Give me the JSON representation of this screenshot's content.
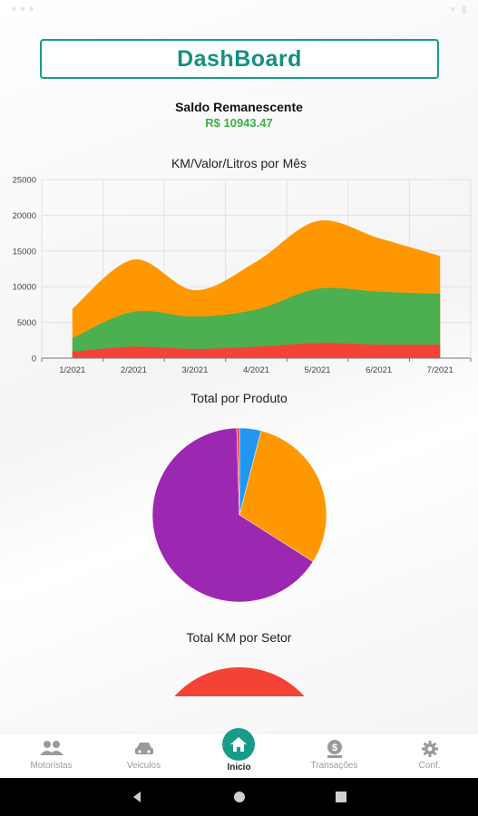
{
  "title": "DashBoard",
  "saldo": {
    "label": "Saldo Remanescente",
    "value": "R$ 10943.47"
  },
  "colors": {
    "accent": "#1a9b8a",
    "orange": "#ff9800",
    "green": "#4caf50",
    "red": "#f44336",
    "purple": "#9c27b0",
    "blue": "#2196f3",
    "saldo": "#3cb043"
  },
  "chart_data": [
    {
      "type": "area",
      "title": "KM/Valor/Litros por Mês",
      "categories": [
        "1/2021",
        "2/2021",
        "3/2021",
        "4/2021",
        "5/2021",
        "6/2021",
        "7/2021"
      ],
      "stacked": true,
      "ylim": [
        0,
        25000
      ],
      "yticks": [
        "0",
        "5000",
        "10000",
        "15000",
        "20000",
        "25000"
      ],
      "grid": true,
      "series": [
        {
          "color": "#f44336",
          "values": [
            900,
            1600,
            1300,
            1600,
            2100,
            1900,
            1900
          ]
        },
        {
          "color": "#4caf50",
          "values": [
            1900,
            4900,
            4500,
            5200,
            7600,
            7400,
            7100
          ]
        },
        {
          "color": "#ff9800",
          "values": [
            4100,
            7300,
            3700,
            6700,
            9500,
            7500,
            5300
          ]
        }
      ]
    },
    {
      "type": "pie",
      "title": "Total por Produto",
      "slices": [
        {
          "color": "#2196f3",
          "value": 4
        },
        {
          "color": "#ff9800",
          "value": 30
        },
        {
          "color": "#9c27b0",
          "value": 65.5
        },
        {
          "color": "#f44336",
          "value": 0.5
        }
      ]
    },
    {
      "type": "pie",
      "title": "Total KM por Setor",
      "slices": [
        {
          "color": "#f44336",
          "value": 100
        }
      ]
    }
  ],
  "nav": [
    {
      "label": "Motoristas",
      "icon": "people-icon"
    },
    {
      "label": "Veiculos",
      "icon": "car-icon"
    },
    {
      "label": "Inicio",
      "icon": "home-icon"
    },
    {
      "label": "Transações",
      "icon": "money-icon"
    },
    {
      "label": "Conf.",
      "icon": "gear-icon"
    }
  ]
}
